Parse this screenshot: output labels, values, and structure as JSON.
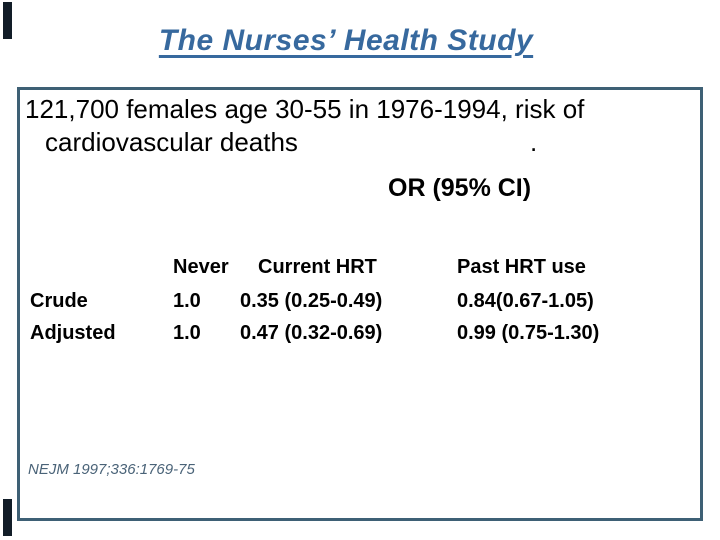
{
  "slide_title": "The Nurses’ Health Study",
  "study_box": {
    "line1": "121,700 females age 30-55 in 1976-1994, risk of",
    "line2": "cardiovascular deaths",
    "stray_period": ".",
    "or_heading": "OR (95% CI)",
    "table": {
      "col_headers": [
        "Never",
        "Current HRT",
        "Past HRT use"
      ],
      "rows": [
        {
          "label": "Crude",
          "never": "1.0",
          "current_hrt": "0.35 (0.25-0.49)",
          "past_hrt": "0.84(0.67-1.05)"
        },
        {
          "label": "Adjusted",
          "never": "1.0",
          "current_hrt": "0.47 (0.32-0.69)",
          "past_hrt": "0.99 (0.75-1.30)"
        }
      ]
    },
    "citation": "NEJM 1997;336:1769-75"
  },
  "colors": {
    "title_blue": "#37699E",
    "box_border": "#3E6075",
    "citation_slate": "#4A6378",
    "accent_bar": "#121D28",
    "body_text": "#000000"
  }
}
